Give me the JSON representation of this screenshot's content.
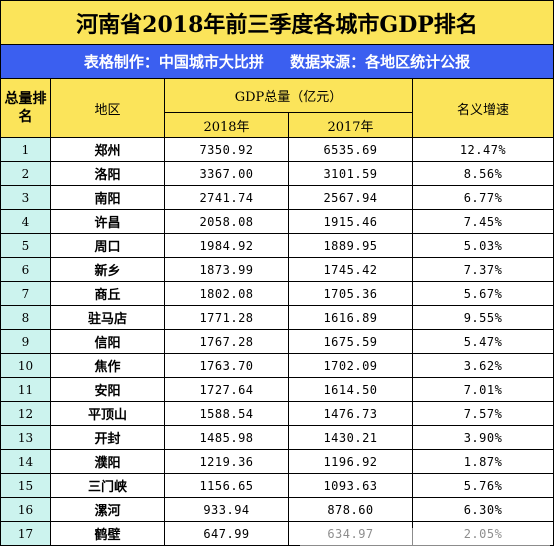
{
  "title": "河南省2018年前三季度各城市GDP排名",
  "subtitle": {
    "maker": "表格制作：中国城市大比拼",
    "source": "数据来源：各地区统计公报"
  },
  "headers": {
    "rank": "总量排名",
    "region": "地区",
    "gdp_total": "GDP总量（亿元）",
    "year_2018": "2018年",
    "year_2017": "2017年",
    "growth": "名义增速"
  },
  "rows": [
    {
      "rank": "1",
      "city": "郑州",
      "gdp_2018": "7350.92",
      "gdp_2017": "6535.69",
      "growth": "12.47%"
    },
    {
      "rank": "2",
      "city": "洛阳",
      "gdp_2018": "3367.00",
      "gdp_2017": "3101.59",
      "growth": "8.56%"
    },
    {
      "rank": "3",
      "city": "南阳",
      "gdp_2018": "2741.74",
      "gdp_2017": "2567.94",
      "growth": "6.77%"
    },
    {
      "rank": "4",
      "city": "许昌",
      "gdp_2018": "2058.08",
      "gdp_2017": "1915.46",
      "growth": "7.45%"
    },
    {
      "rank": "5",
      "city": "周口",
      "gdp_2018": "1984.92",
      "gdp_2017": "1889.95",
      "growth": "5.03%"
    },
    {
      "rank": "6",
      "city": "新乡",
      "gdp_2018": "1873.99",
      "gdp_2017": "1745.42",
      "growth": "7.37%"
    },
    {
      "rank": "7",
      "city": "商丘",
      "gdp_2018": "1802.08",
      "gdp_2017": "1705.36",
      "growth": "5.67%"
    },
    {
      "rank": "8",
      "city": "驻马店",
      "gdp_2018": "1771.28",
      "gdp_2017": "1616.89",
      "growth": "9.55%"
    },
    {
      "rank": "9",
      "city": "信阳",
      "gdp_2018": "1767.28",
      "gdp_2017": "1675.59",
      "growth": "5.47%"
    },
    {
      "rank": "10",
      "city": "焦作",
      "gdp_2018": "1763.70",
      "gdp_2017": "1702.09",
      "growth": "3.62%"
    },
    {
      "rank": "11",
      "city": "安阳",
      "gdp_2018": "1727.64",
      "gdp_2017": "1614.50",
      "growth": "7.01%"
    },
    {
      "rank": "12",
      "city": "平顶山",
      "gdp_2018": "1588.54",
      "gdp_2017": "1476.73",
      "growth": "7.57%"
    },
    {
      "rank": "13",
      "city": "开封",
      "gdp_2018": "1485.98",
      "gdp_2017": "1430.21",
      "growth": "3.90%"
    },
    {
      "rank": "14",
      "city": "濮阳",
      "gdp_2018": "1219.36",
      "gdp_2017": "1196.92",
      "growth": "1.87%"
    },
    {
      "rank": "15",
      "city": "三门峡",
      "gdp_2018": "1156.65",
      "gdp_2017": "1093.63",
      "growth": "5.76%"
    },
    {
      "rank": "16",
      "city": "漯河",
      "gdp_2018": "933.94",
      "gdp_2017": "878.60",
      "growth": "6.30%"
    },
    {
      "rank": "17",
      "city": "鹤壁",
      "gdp_2018": "647.99",
      "gdp_2017": "634.97",
      "growth": "2.05%"
    }
  ],
  "colors": {
    "title_bg": "#fbe45a",
    "subtitle_bg": "#3b5ff0",
    "rank_bg": "#ccf3ee"
  }
}
